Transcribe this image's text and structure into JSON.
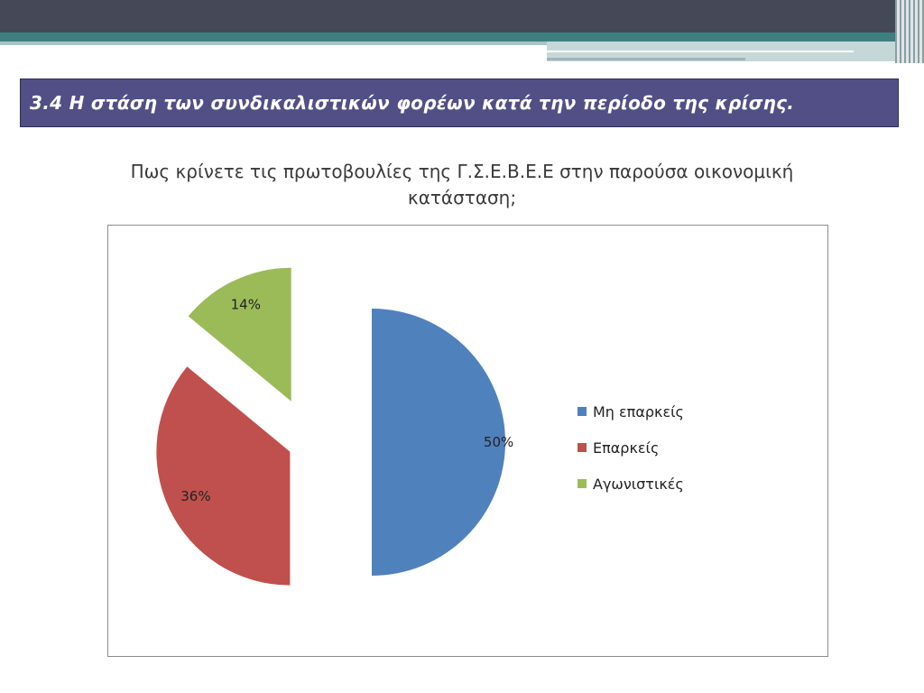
{
  "slide": {
    "title": "3.4 Η στάση των συνδικαλιστικών φορέων κατά την περίοδο της κρίσης.",
    "question_line1": "Πως κρίνετε τις πρωτοβουλίες της Γ.Σ.Ε.Β.Ε.Ε στην παρούσα οικονομική",
    "question_line2": "κατάσταση;"
  },
  "chart_data": {
    "type": "pie",
    "exploded": true,
    "legend_position": "right",
    "slices": [
      {
        "label": "Μη επαρκείς",
        "value": 50,
        "data_label": "50%",
        "color": "#4f81bd"
      },
      {
        "label": "Επαρκείς",
        "value": 36,
        "data_label": "36%",
        "color": "#c0504d"
      },
      {
        "label": "Αγωνιστικές",
        "value": 14,
        "data_label": "14%",
        "color": "#9bbb59"
      }
    ]
  }
}
